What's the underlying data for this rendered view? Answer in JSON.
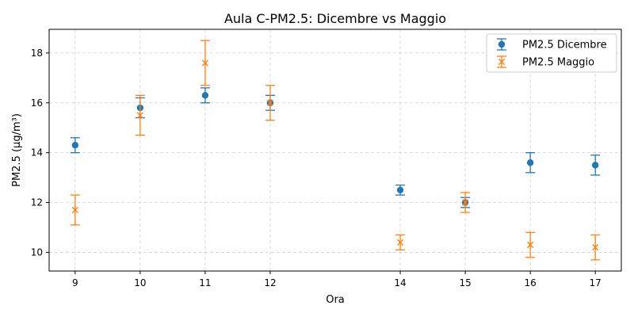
{
  "chart_data": {
    "type": "scatter",
    "title": "Aula C-PM2.5: Dicembre vs Maggio",
    "xlabel": "Ora",
    "ylabel": "PM2.5 (µg/m³)",
    "x_ticks": [
      9,
      10,
      11,
      12,
      14,
      15,
      16,
      17
    ],
    "y_ticks": [
      10,
      12,
      14,
      16,
      18
    ],
    "xlim": [
      8.6,
      17.4
    ],
    "ylim": [
      9.25,
      18.95
    ],
    "grid": true,
    "legend_position": "top-right",
    "series": [
      {
        "name": "PM2.5 Dicembre",
        "marker": "circle",
        "color": "#1f77b4",
        "x": [
          9,
          10,
          11,
          12,
          14,
          15,
          16,
          17
        ],
        "y": [
          14.3,
          15.8,
          16.3,
          16.0,
          12.5,
          12.0,
          13.6,
          13.5
        ],
        "err": [
          0.3,
          0.4,
          0.3,
          0.3,
          0.2,
          0.2,
          0.4,
          0.4
        ]
      },
      {
        "name": "PM2.5 Maggio",
        "marker": "x",
        "color": "#ff7f0e",
        "x": [
          9,
          10,
          11,
          12,
          14,
          15,
          16,
          17
        ],
        "y": [
          11.7,
          15.5,
          17.6,
          16.0,
          10.4,
          12.0,
          10.3,
          10.2
        ],
        "err": [
          0.6,
          0.8,
          0.9,
          0.7,
          0.3,
          0.4,
          0.5,
          0.5
        ]
      }
    ]
  }
}
